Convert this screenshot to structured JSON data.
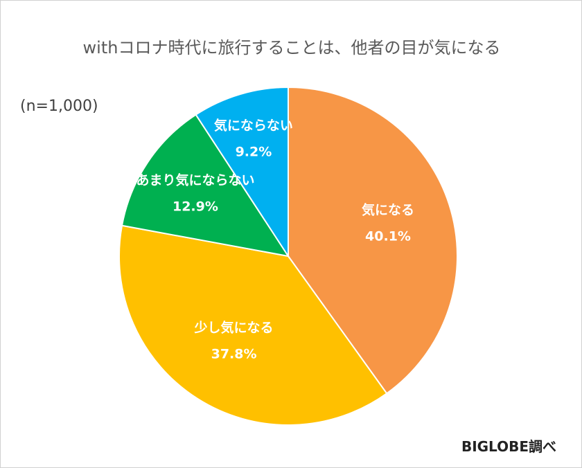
{
  "chart_data": {
    "type": "pie",
    "title": "withコロナ時代に旅行することは、他者の目が気になる",
    "note": "(n=1,000)",
    "source": "BIGLOBE調べ",
    "slices": [
      {
        "name": "気になる",
        "value": 40.1,
        "label": "40.1%",
        "color": "#F79646"
      },
      {
        "name": "少し気になる",
        "value": 37.8,
        "label": "37.8%",
        "color": "#FFC000"
      },
      {
        "name": "あまり気にならない",
        "value": 12.9,
        "label": "12.9%",
        "color": "#00B050"
      },
      {
        "name": "気にならない",
        "value": 9.2,
        "label": "9.2%",
        "color": "#00B0F0"
      }
    ]
  }
}
